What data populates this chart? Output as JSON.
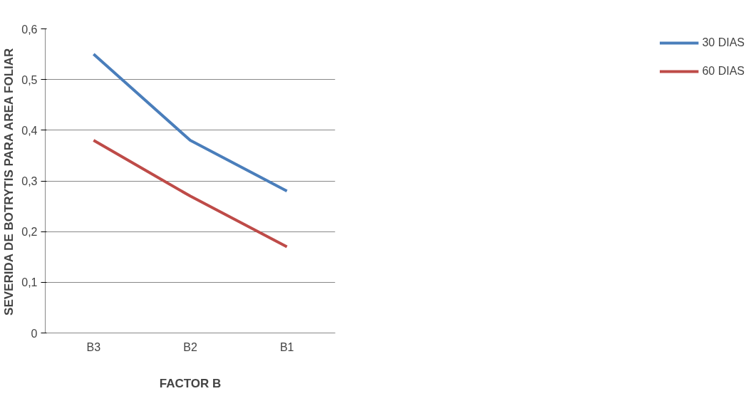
{
  "chart_data": {
    "type": "line",
    "xlabel": "FACTOR B",
    "ylabel": "SEVERIDA DE BOTRYTIS PARA AREA FOLIAR",
    "categories": [
      "B3",
      "B2",
      "B1"
    ],
    "series": [
      {
        "name": "30 DIAS",
        "color": "#4a7ebb",
        "values": [
          0.55,
          0.38,
          0.28
        ]
      },
      {
        "name": "60 DIAS",
        "color": "#be4b48",
        "values": [
          0.38,
          0.27,
          0.17
        ]
      }
    ],
    "ylim": [
      0,
      0.6
    ],
    "yticks": [
      0,
      {
        "value": 0.1,
        "label": "0,1"
      },
      {
        "value": 0.2,
        "label": "0,2"
      },
      {
        "value": 0.3,
        "label": "0,3"
      },
      {
        "value": 0.4,
        "label": "0,4"
      },
      {
        "value": 0.5,
        "label": "0,5"
      },
      {
        "value": 0.6,
        "label": "0,6"
      }
    ],
    "grid": "y",
    "legend": "right",
    "marker": "none",
    "line_style": "solid"
  }
}
